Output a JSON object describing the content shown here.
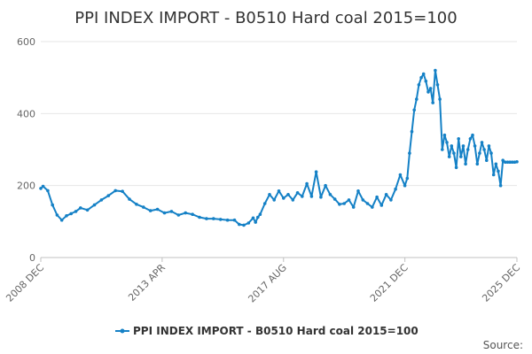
{
  "chart_data": {
    "type": "line",
    "title": "PPI INDEX IMPORT - B0510 Hard coal 2015=100",
    "xlabel": "",
    "ylabel": "",
    "ylim": [
      0,
      600
    ],
    "yticks": [
      0,
      200,
      400,
      600
    ],
    "xlim": [
      "2008-12",
      "2025-12"
    ],
    "xticks": [
      "2008 DEC",
      "2013 APR",
      "2017 AUG",
      "2021 DEC",
      "2025 DEC"
    ],
    "grid": true,
    "legend": "bottom",
    "source_label": "Source:",
    "series": [
      {
        "name": "PPI INDEX IMPORT - B0510 Hard coal 2015=100",
        "color": "#1581c6",
        "x": [
          "2008-12",
          "2009-01",
          "2009-03",
          "2009-05",
          "2009-07",
          "2009-09",
          "2009-11",
          "2010-01",
          "2010-03",
          "2010-05",
          "2010-08",
          "2010-11",
          "2011-02",
          "2011-05",
          "2011-08",
          "2011-11",
          "2012-02",
          "2012-05",
          "2012-08",
          "2012-11",
          "2013-02",
          "2013-05",
          "2013-08",
          "2013-11",
          "2014-02",
          "2014-05",
          "2014-08",
          "2014-11",
          "2015-02",
          "2015-05",
          "2015-08",
          "2015-11",
          "2016-01",
          "2016-03",
          "2016-05",
          "2016-07",
          "2016-08",
          "2016-09",
          "2016-10",
          "2016-12",
          "2017-02",
          "2017-04",
          "2017-06",
          "2017-08",
          "2017-10",
          "2017-12",
          "2018-02",
          "2018-04",
          "2018-06",
          "2018-08",
          "2018-10",
          "2018-12",
          "2019-02",
          "2019-04",
          "2019-06",
          "2019-08",
          "2019-10",
          "2019-12",
          "2020-02",
          "2020-04",
          "2020-06",
          "2020-08",
          "2020-10",
          "2020-12",
          "2021-02",
          "2021-04",
          "2021-06",
          "2021-08",
          "2021-10",
          "2021-12",
          "2022-01",
          "2022-02",
          "2022-03",
          "2022-04",
          "2022-05",
          "2022-06",
          "2022-07",
          "2022-08",
          "2022-09",
          "2022-10",
          "2022-11",
          "2022-12",
          "2023-01",
          "2023-02",
          "2023-03",
          "2023-04",
          "2023-05",
          "2023-06",
          "2023-07",
          "2023-08",
          "2023-09",
          "2023-10",
          "2023-11",
          "2023-12",
          "2024-01",
          "2024-02",
          "2024-03",
          "2024-04",
          "2024-05",
          "2024-06",
          "2024-07",
          "2024-08",
          "2024-09",
          "2024-10",
          "2024-11",
          "2024-12",
          "2025-01",
          "2025-02",
          "2025-03",
          "2025-04",
          "2025-05",
          "2025-06",
          "2025-07",
          "2025-08",
          "2025-09",
          "2025-10",
          "2025-11",
          "2025-12"
        ],
        "values": [
          192,
          198,
          186,
          146,
          118,
          104,
          116,
          122,
          128,
          138,
          132,
          146,
          160,
          172,
          186,
          184,
          162,
          148,
          140,
          130,
          134,
          124,
          128,
          118,
          124,
          120,
          112,
          108,
          108,
          106,
          104,
          104,
          92,
          90,
          96,
          110,
          98,
          112,
          120,
          150,
          175,
          160,
          185,
          165,
          175,
          160,
          180,
          170,
          205,
          170,
          238,
          168,
          200,
          175,
          162,
          148,
          150,
          160,
          140,
          185,
          160,
          150,
          140,
          168,
          145,
          175,
          160,
          190,
          230,
          200,
          220,
          290,
          350,
          410,
          440,
          480,
          500,
          510,
          490,
          460,
          470,
          430,
          520,
          480,
          440,
          300,
          340,
          320,
          280,
          310,
          290,
          250,
          330,
          280,
          310,
          260,
          300,
          330,
          340,
          310,
          260,
          290,
          320,
          300,
          270,
          310,
          290,
          230,
          260,
          240,
          200,
          270,
          265,
          265,
          265,
          265,
          265,
          266
        ]
      }
    ]
  }
}
